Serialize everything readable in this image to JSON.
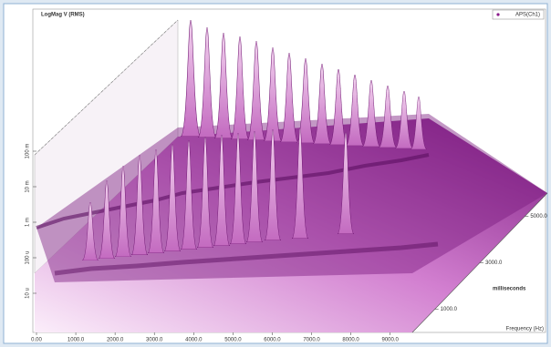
{
  "chart_data": {
    "type": "waterfall3d",
    "title": "LogMag V (RMS)",
    "legend": [
      "APS(Ch1)"
    ],
    "legend_color": "#8b1a8b",
    "x_label": "Frequency (Hz)",
    "z_label": "milliseconds",
    "xlim": [
      0,
      13000
    ],
    "xticks": [
      {
        "value": 0,
        "label": "0.00"
      },
      {
        "value": 1000,
        "label": "1000.0"
      },
      {
        "value": 2000,
        "label": "2000.0"
      },
      {
        "value": 3000,
        "label": "3000.0"
      },
      {
        "value": 4000,
        "label": "4000.0"
      },
      {
        "value": 5000,
        "label": "5000.0"
      },
      {
        "value": 6000,
        "label": "6000.0"
      },
      {
        "value": 7000,
        "label": "7000.0"
      },
      {
        "value": 8000,
        "label": "8000.0"
      },
      {
        "value": 9000,
        "label": "9000.0"
      }
    ],
    "ylog": true,
    "ylim": [
      1e-06,
      10
    ],
    "yticks": [
      {
        "value": 1e-05,
        "label": "10 u"
      },
      {
        "value": 0.0001,
        "label": "100 u"
      },
      {
        "value": 0.001,
        "label": "1 m"
      },
      {
        "value": 0.01,
        "label": "10 m"
      },
      {
        "value": 0.1,
        "label": "100 m"
      }
    ],
    "zlim": [
      0,
      6000
    ],
    "zticks": [
      {
        "value": 1000,
        "label": "1000.0"
      },
      {
        "value": 3000,
        "label": "3000.0"
      },
      {
        "value": 5000,
        "label": "5000.0"
      }
    ]
  }
}
